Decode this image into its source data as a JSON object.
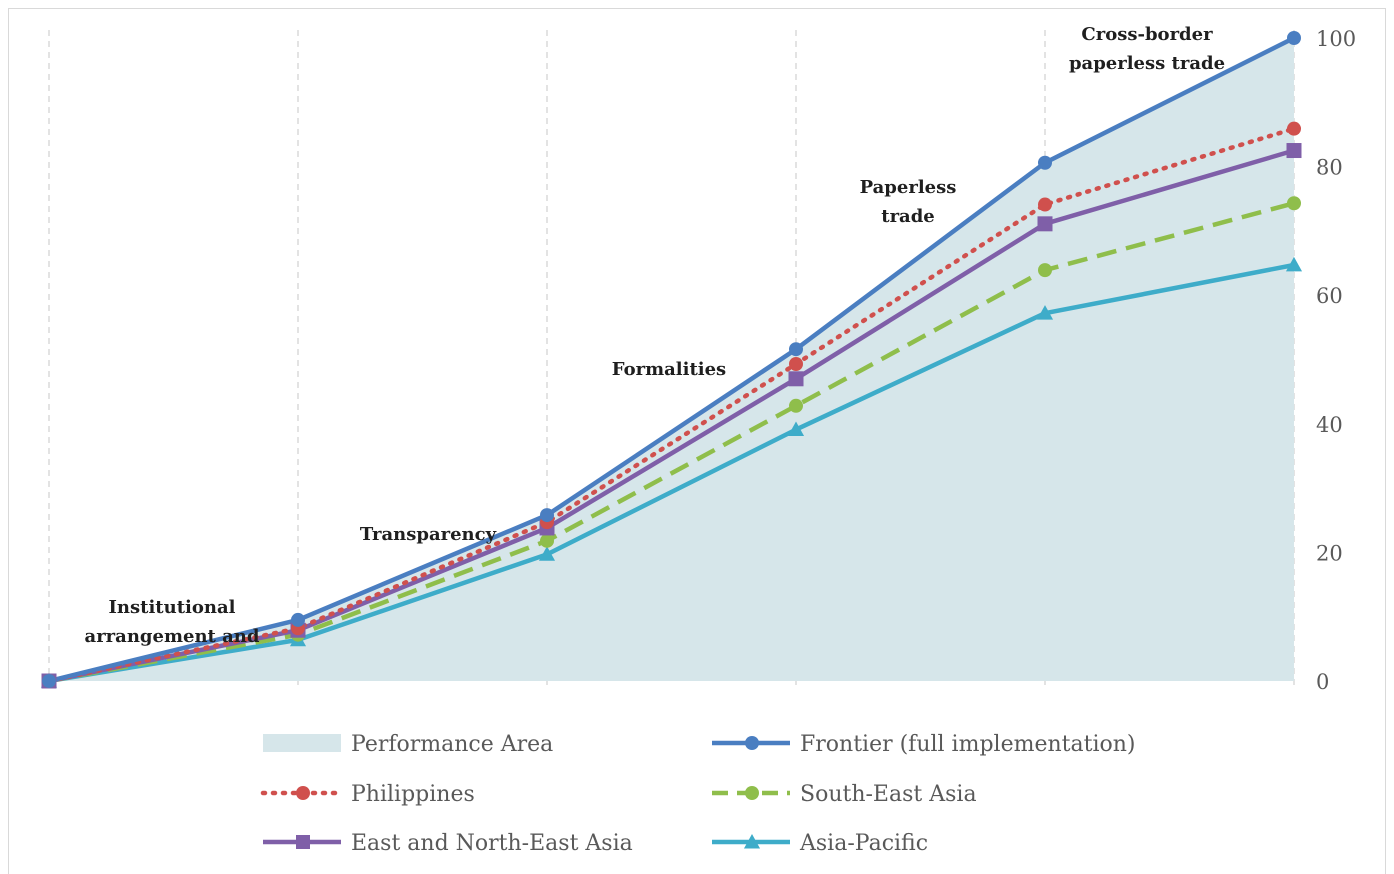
{
  "chart_data": {
    "type": "line",
    "x": [
      0,
      1,
      2,
      3,
      4,
      5
    ],
    "ylim": [
      0,
      100
    ],
    "yticks": [
      0,
      20,
      40,
      60,
      80,
      100
    ],
    "y_axis_side": "right",
    "grid": "vertical dashed",
    "legend_placement": "bottom",
    "annotations": [
      {
        "lines": [
          "Institutional",
          "arrangement and"
        ]
      },
      {
        "lines": [
          "Transparency"
        ]
      },
      {
        "lines": [
          "Formalities"
        ]
      },
      {
        "lines": [
          "Paperless",
          "trade"
        ]
      },
      {
        "lines": [
          "Cross-border",
          "paperless trade"
        ]
      }
    ],
    "area": {
      "name": "Performance Area",
      "values": [
        0,
        9.5,
        25.8,
        51.6,
        80.6,
        100
      ],
      "color": "#d6e6ea"
    },
    "series": [
      {
        "name": "Frontier (full implementation)",
        "values": [
          0,
          9.5,
          25.8,
          51.6,
          80.6,
          100
        ],
        "color": "#4a7ec1",
        "dash": "solid",
        "marker": "circle"
      },
      {
        "name": "Philippines",
        "values": [
          0,
          8.2,
          24.7,
          49.3,
          74.1,
          85.9
        ],
        "color": "#d0504d",
        "dash": "dotted",
        "marker": "circle"
      },
      {
        "name": "South-East Asia",
        "values": [
          0,
          7.2,
          21.8,
          42.8,
          63.9,
          74.3
        ],
        "color": "#8fbe4b",
        "dash": "dashed",
        "marker": "circle"
      },
      {
        "name": "East and North-East Asia",
        "values": [
          0,
          7.9,
          23.8,
          47.0,
          71.1,
          82.5
        ],
        "color": "#7f5fa8",
        "dash": "solid",
        "marker": "square"
      },
      {
        "name": "Asia-Pacific",
        "values": [
          0,
          6.4,
          19.7,
          39.1,
          57.2,
          64.7
        ],
        "color": "#3eacc9",
        "dash": "solid",
        "marker": "triangle"
      }
    ]
  }
}
